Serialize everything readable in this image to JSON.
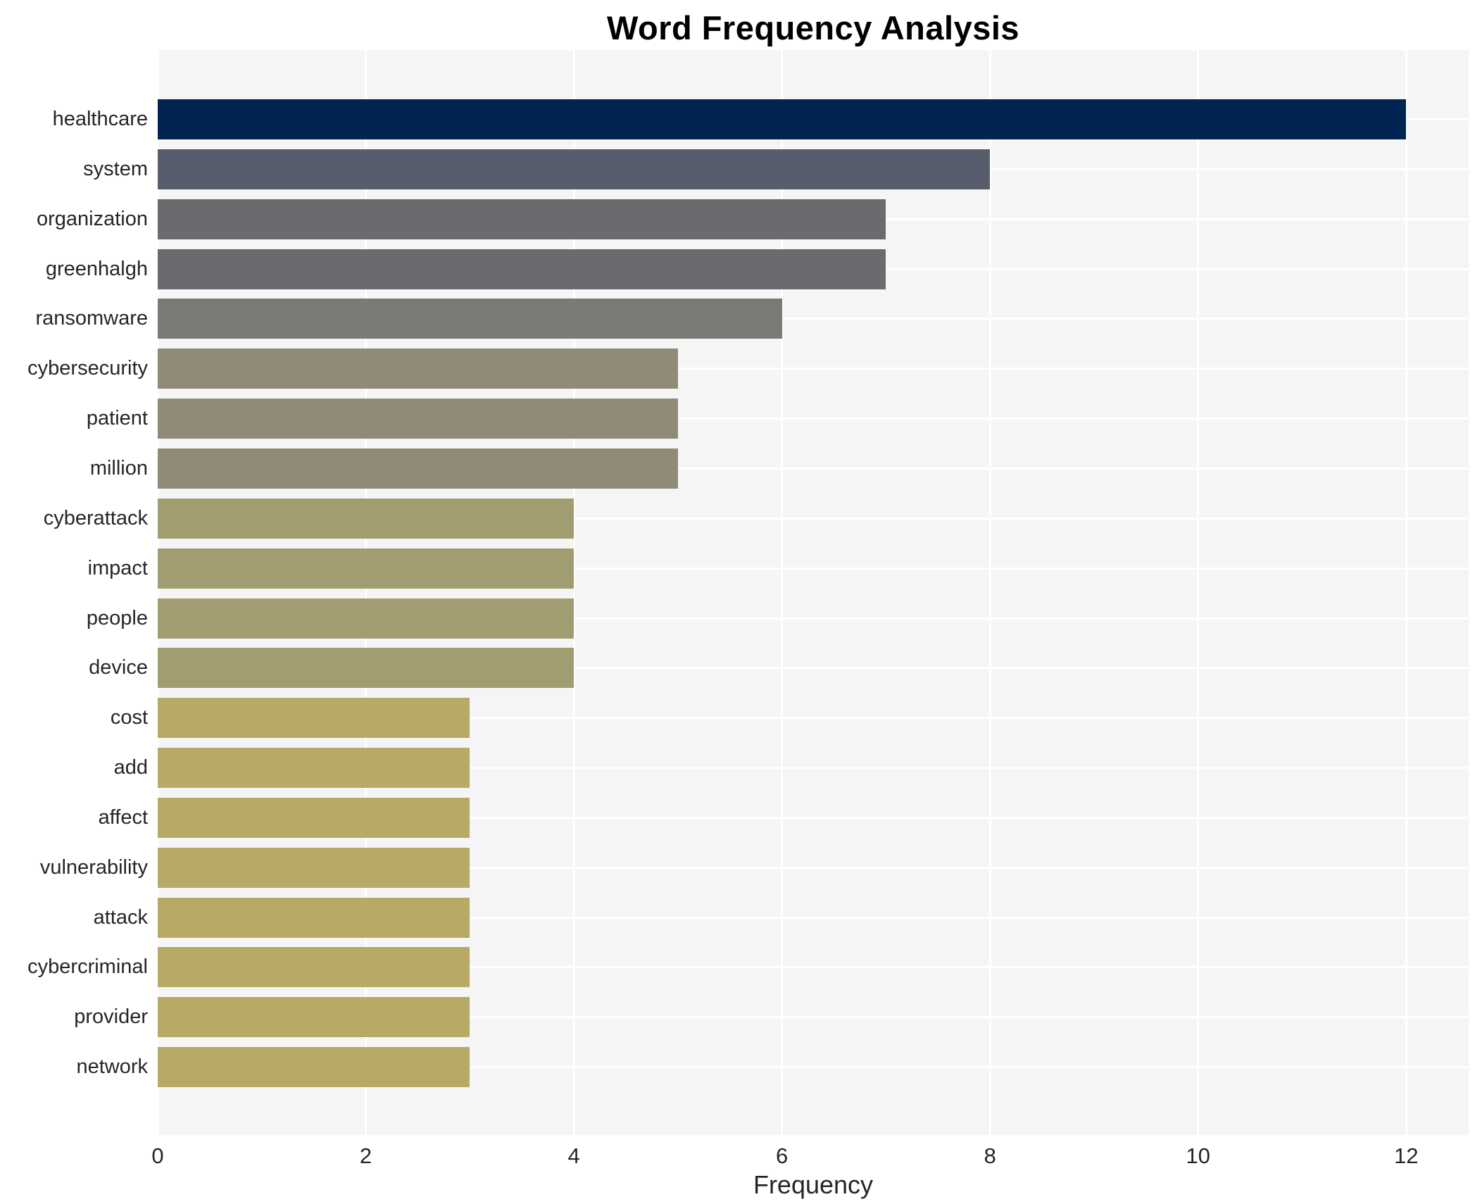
{
  "figure": {
    "background": "#ffffff",
    "plot_background": "#f5f5f6",
    "grid_color": "#ffffff",
    "text_color": "#262626",
    "title_color": "#000000"
  },
  "chart_data": {
    "type": "bar",
    "orientation": "horizontal",
    "title": "Word Frequency Analysis",
    "xlabel": "Frequency",
    "ylabel": "",
    "xlim": [
      0,
      12.6
    ],
    "x_ticks": [
      0,
      2,
      4,
      6,
      8,
      10,
      12
    ],
    "grid": true,
    "legend": false,
    "categories": [
      "healthcare",
      "system",
      "organization",
      "greenhalgh",
      "ransomware",
      "cybersecurity",
      "patient",
      "million",
      "cyberattack",
      "impact",
      "people",
      "device",
      "cost",
      "add",
      "affect",
      "vulnerability",
      "attack",
      "cybercriminal",
      "provider",
      "network"
    ],
    "values": [
      12,
      8,
      7,
      7,
      6,
      5,
      5,
      5,
      4,
      4,
      4,
      4,
      3,
      3,
      3,
      3,
      3,
      3,
      3,
      3
    ],
    "bar_colors": [
      "#022450",
      "#575d6d",
      "#6a6a6f",
      "#6a6a6f",
      "#7b7a74",
      "#8f8b77",
      "#8f8b77",
      "#8f8b77",
      "#a29c71",
      "#a29c71",
      "#a29c71",
      "#a29c71",
      "#b6aa66",
      "#b6aa66",
      "#b6aa66",
      "#b6aa66",
      "#b6aa66",
      "#b6aa66",
      "#b6aa66",
      "#b6aa66"
    ]
  }
}
